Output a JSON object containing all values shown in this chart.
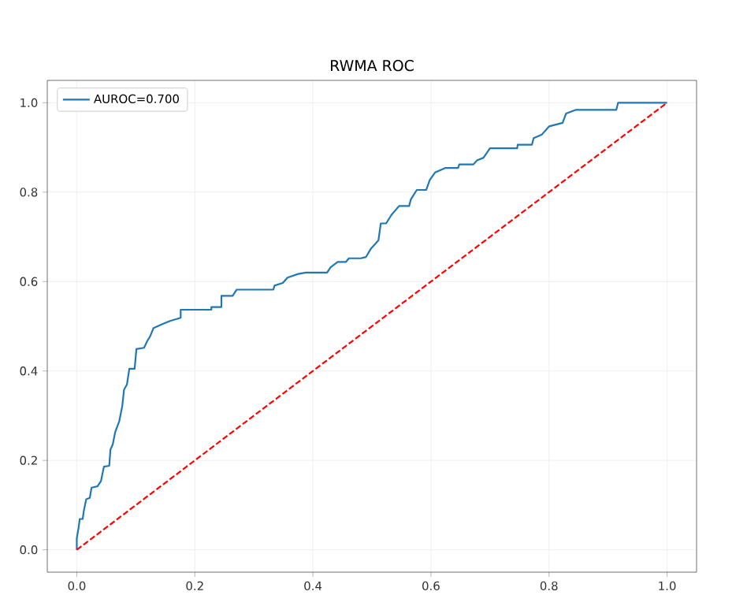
{
  "chart_data": {
    "type": "line",
    "title": "RWMA ROC",
    "x": [
      0,
      0,
      0.003,
      0.005,
      0.01,
      0.012,
      0.016,
      0.022,
      0.025,
      0.035,
      0.041,
      0.046,
      0.055,
      0.057,
      0.061,
      0.065,
      0.072,
      0.077,
      0.08,
      0.085,
      0.089,
      0.098,
      0.101,
      0.114,
      0.119,
      0.124,
      0.13,
      0.145,
      0.158,
      0.176,
      0.176,
      0.228,
      0.228,
      0.245,
      0.245,
      0.264,
      0.271,
      0.333,
      0.335,
      0.349,
      0.357,
      0.375,
      0.388,
      0.424,
      0.43,
      0.442,
      0.456,
      0.461,
      0.481,
      0.49,
      0.498,
      0.511,
      0.515,
      0.524,
      0.533,
      0.546,
      0.563,
      0.566,
      0.576,
      0.592,
      0.598,
      0.607,
      0.624,
      0.646,
      0.648,
      0.672,
      0.678,
      0.689,
      0.7,
      0.746,
      0.747,
      0.771,
      0.774,
      0.788,
      0.8,
      0.823,
      0.829,
      0.845,
      0.914,
      0.917,
      1.0
    ],
    "series": [
      {
        "name": "AUROC=0.700",
        "color": "#1f77b4",
        "line_style": "solid",
        "values": [
          0,
          0.026,
          0.049,
          0.069,
          0.069,
          0.088,
          0.113,
          0.116,
          0.139,
          0.142,
          0.154,
          0.186,
          0.188,
          0.224,
          0.236,
          0.263,
          0.288,
          0.321,
          0.358,
          0.37,
          0.405,
          0.405,
          0.449,
          0.452,
          0.466,
          0.477,
          0.496,
          0.505,
          0.512,
          0.519,
          0.537,
          0.537,
          0.543,
          0.543,
          0.568,
          0.568,
          0.582,
          0.582,
          0.591,
          0.597,
          0.609,
          0.617,
          0.62,
          0.62,
          0.632,
          0.644,
          0.644,
          0.652,
          0.652,
          0.655,
          0.673,
          0.692,
          0.73,
          0.73,
          0.749,
          0.769,
          0.769,
          0.784,
          0.805,
          0.805,
          0.827,
          0.844,
          0.854,
          0.854,
          0.862,
          0.862,
          0.871,
          0.877,
          0.898,
          0.898,
          0.906,
          0.906,
          0.921,
          0.929,
          0.947,
          0.955,
          0.976,
          0.984,
          0.984,
          1.0,
          1.0
        ]
      },
      {
        "color": "#ff0000",
        "line_style": "dashed",
        "x": [
          0,
          1
        ],
        "values": [
          0,
          1
        ]
      }
    ],
    "xlim": [
      -0.05,
      1.05
    ],
    "ylim": [
      -0.05,
      1.05
    ],
    "xticks": [
      {
        "value": 0,
        "label": "0.0"
      },
      0.2,
      0.4,
      0.6,
      0.8,
      {
        "value": 1,
        "label": "1.0"
      }
    ],
    "yticks": [
      {
        "value": 0,
        "label": "0.0"
      },
      0.2,
      0.4,
      0.6,
      0.8,
      {
        "value": 1,
        "label": "1.0"
      }
    ],
    "grid": true,
    "legend": "top left"
  }
}
